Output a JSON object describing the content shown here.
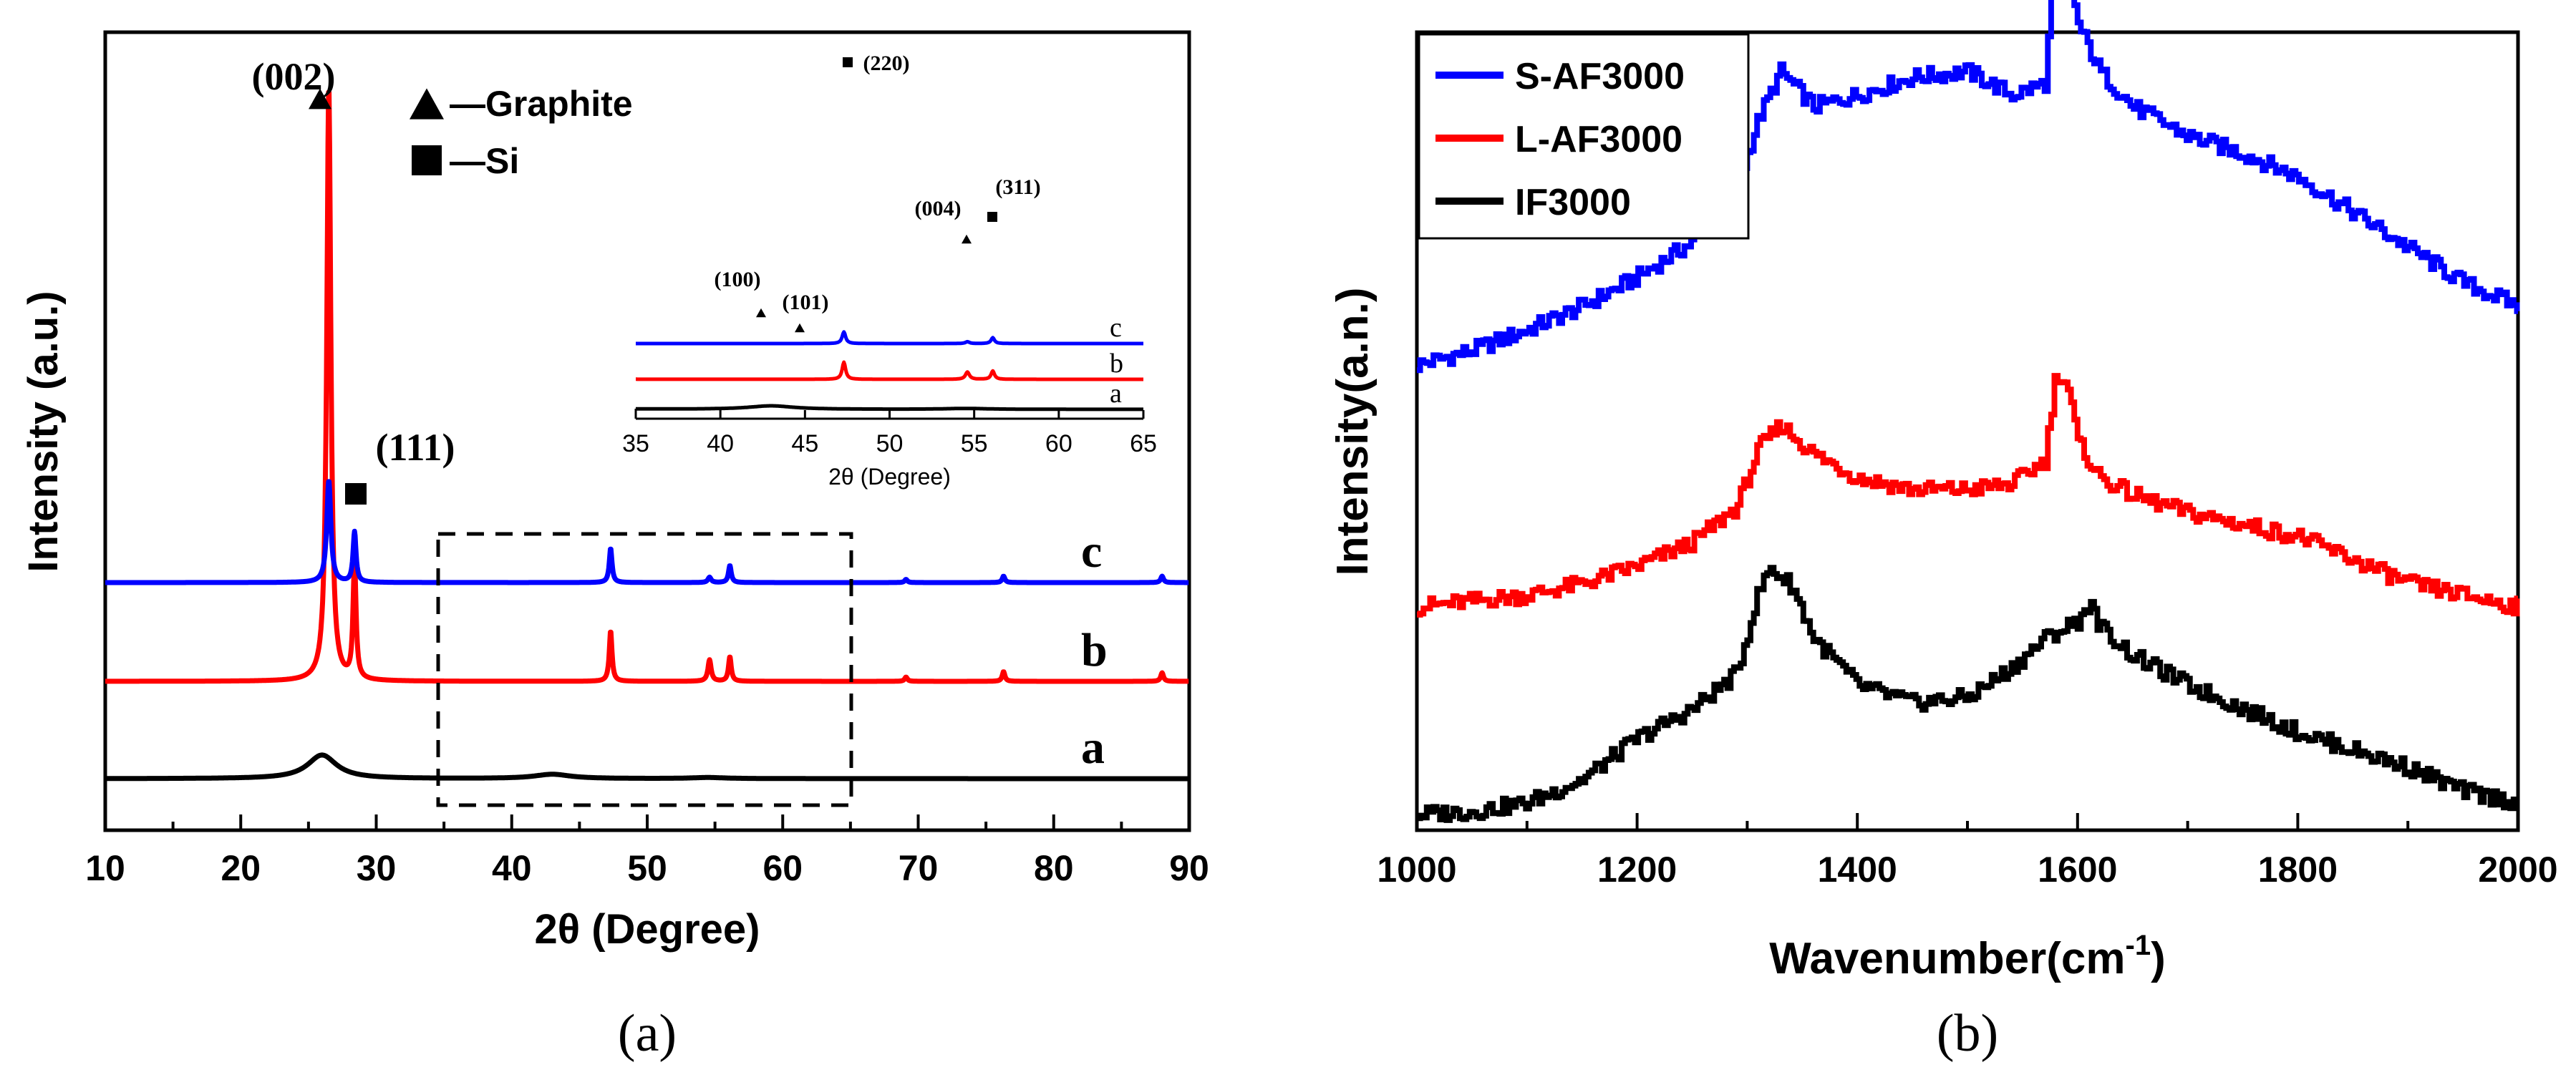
{
  "colors": {
    "a": "#000000",
    "b": "#ff0000",
    "c": "#0000ff",
    "axis": "#000000"
  },
  "chart_data": [
    {
      "panel": "(a)",
      "type": "line",
      "xlabel": "2θ (Degree)",
      "ylabel": "Intensity (a.u.)",
      "xlim": [
        10,
        90
      ],
      "xticks": [
        10,
        20,
        30,
        40,
        50,
        60,
        70,
        80,
        90
      ],
      "legend": {
        "placement": "top-center",
        "entries": [
          {
            "marker": "triangle",
            "label": "—Graphite"
          },
          {
            "marker": "square",
            "label": "—Si"
          }
        ]
      },
      "series": [
        {
          "name": "a",
          "color": "#000000",
          "baseline": 0,
          "peaks": [
            {
              "x": 26.0,
              "h": 0.22,
              "w": 1.3
            },
            {
              "x": 43.0,
              "h": 0.04,
              "w": 1.6
            },
            {
              "x": 54.5,
              "h": 0.01,
              "w": 1.5
            }
          ]
        },
        {
          "name": "b",
          "color": "#ff0000",
          "baseline": 1,
          "peaks": [
            {
              "x": 26.5,
              "h": 5.55,
              "w": 0.18
            },
            {
              "x": 28.4,
              "h": 1.1,
              "w": 0.13
            },
            {
              "x": 47.3,
              "h": 0.47,
              "w": 0.12
            },
            {
              "x": 54.6,
              "h": 0.2,
              "w": 0.14
            },
            {
              "x": 56.1,
              "h": 0.23,
              "w": 0.12
            },
            {
              "x": 69.1,
              "h": 0.04,
              "w": 0.12
            },
            {
              "x": 76.3,
              "h": 0.09,
              "w": 0.12
            },
            {
              "x": 88.0,
              "h": 0.08,
              "w": 0.12
            }
          ]
        },
        {
          "name": "c",
          "color": "#0000ff",
          "baseline": 2,
          "peaks": [
            {
              "x": 26.5,
              "h": 0.95,
              "w": 0.18
            },
            {
              "x": 28.4,
              "h": 0.47,
              "w": 0.13
            },
            {
              "x": 47.3,
              "h": 0.32,
              "w": 0.12
            },
            {
              "x": 54.6,
              "h": 0.05,
              "w": 0.14
            },
            {
              "x": 56.1,
              "h": 0.16,
              "w": 0.12
            },
            {
              "x": 69.1,
              "h": 0.03,
              "w": 0.12
            },
            {
              "x": 76.3,
              "h": 0.06,
              "w": 0.12
            },
            {
              "x": 88.0,
              "h": 0.06,
              "w": 0.12
            }
          ]
        }
      ],
      "annotations": [
        {
          "text": "(002)",
          "marker": "triangle",
          "x": 26.5
        },
        {
          "text": "(111)",
          "marker": "square",
          "x": 28.4
        }
      ],
      "zoom_box_x": [
        35,
        65
      ],
      "inset": {
        "xlabel": "2θ (Degree)",
        "xlim": [
          35,
          65
        ],
        "xticks": [
          35,
          40,
          45,
          50,
          55,
          60,
          65
        ],
        "annotations": [
          {
            "text": "(100)",
            "marker": "triangle",
            "x": 42.5
          },
          {
            "text": "(101)",
            "marker": "triangle",
            "x": 44.5
          },
          {
            "text": "(220)",
            "marker": "square",
            "x": 47.3
          },
          {
            "text": "(004)",
            "marker": "triangle",
            "x": 54.5
          },
          {
            "text": "(311)",
            "marker": "square",
            "x": 56.1
          }
        ]
      }
    },
    {
      "panel": "(b)",
      "type": "line",
      "xlabel": "Wavenumber(cm",
      "xlabel_sup": "-1",
      "xlabel_end": ")",
      "ylabel": "Intensity(a.n.)",
      "xlim": [
        1000,
        2000
      ],
      "xticks": [
        1000,
        1200,
        1400,
        1600,
        1800,
        2000
      ],
      "legend": {
        "placement": "top-left",
        "entries": [
          "S-AF3000",
          "L-AF3000",
          "IF3000"
        ]
      },
      "series": [
        {
          "name": "S-AF3000",
          "color": "#0000ff",
          "x": [
            1000,
            1050,
            1100,
            1150,
            1200,
            1250,
            1290,
            1310,
            1330,
            1360,
            1400,
            1450,
            1500,
            1540,
            1570,
            1580,
            1590,
            1600,
            1620,
            1650,
            1700,
            1750,
            1800,
            1850,
            1900,
            1950,
            2000
          ],
          "y": [
            0.0,
            0.025,
            0.06,
            0.1,
            0.15,
            0.21,
            0.3,
            0.42,
            0.5,
            0.44,
            0.46,
            0.49,
            0.5,
            0.46,
            0.48,
            0.72,
            0.7,
            0.58,
            0.5,
            0.44,
            0.39,
            0.36,
            0.32,
            0.26,
            0.2,
            0.14,
            0.1
          ]
        },
        {
          "name": "L-AF3000",
          "color": "#ff0000",
          "x": [
            1000,
            1050,
            1100,
            1150,
            1200,
            1250,
            1290,
            1310,
            1330,
            1360,
            1400,
            1450,
            1500,
            1540,
            1570,
            1580,
            1590,
            1600,
            1620,
            1650,
            1700,
            1750,
            1800,
            1850,
            1900,
            1950,
            2000
          ],
          "y": [
            0.0,
            0.01,
            0.02,
            0.04,
            0.07,
            0.11,
            0.17,
            0.27,
            0.31,
            0.26,
            0.22,
            0.2,
            0.2,
            0.21,
            0.25,
            0.4,
            0.38,
            0.28,
            0.22,
            0.19,
            0.16,
            0.14,
            0.12,
            0.08,
            0.04,
            0.02,
            0.0
          ]
        },
        {
          "name": "IF3000",
          "color": "#000000",
          "x": [
            1000,
            1050,
            1100,
            1150,
            1200,
            1250,
            1290,
            1310,
            1320,
            1340,
            1360,
            1400,
            1450,
            1500,
            1540,
            1570,
            1600,
            1610,
            1620,
            1650,
            1700,
            1750,
            1800,
            1850,
            1900,
            1950,
            2000
          ],
          "y": [
            0.0,
            0.005,
            0.02,
            0.06,
            0.13,
            0.18,
            0.24,
            0.38,
            0.42,
            0.39,
            0.3,
            0.22,
            0.19,
            0.2,
            0.25,
            0.3,
            0.33,
            0.36,
            0.32,
            0.27,
            0.22,
            0.18,
            0.14,
            0.11,
            0.08,
            0.04,
            0.02
          ]
        }
      ]
    }
  ]
}
